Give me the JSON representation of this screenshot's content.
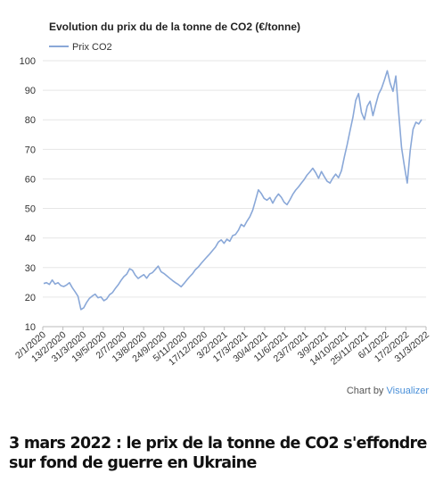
{
  "chart_data": {
    "type": "line",
    "title": "Evolution du prix du de la tonne de CO2 (€/tonne)",
    "xlabel": "",
    "ylabel": "",
    "ylim": [
      10,
      100
    ],
    "yticks": [
      10,
      20,
      30,
      40,
      50,
      60,
      70,
      80,
      90,
      100
    ],
    "xtick_labels": [
      "2/1/2020",
      "13/2/2020",
      "31/3/2020",
      "19/5/2020",
      "2/7/2020",
      "13/8/2020",
      "24/9/2020",
      "5/11/2020",
      "17/12/2020",
      "3/2/2021",
      "17/3/2021",
      "30/4/2021",
      "11/6/2021",
      "23/7/2021",
      "3/9/2021",
      "14/10/2021",
      "25/11/2021",
      "6/1/2022",
      "17/2/2022",
      "31/3/2022"
    ],
    "grid": true,
    "legend_position": "top-left",
    "line_color": "#8aa8d8",
    "series": [
      {
        "name": "Prix CO2",
        "x_start": "2/1/2020",
        "x_end": "31/3/2022",
        "values": [
          24.6,
          24.9,
          24.3,
          25.8,
          24.4,
          24.9,
          23.9,
          23.6,
          24.1,
          24.9,
          23.2,
          21.8,
          20.3,
          15.8,
          16.4,
          18.2,
          19.6,
          20.4,
          21.0,
          19.8,
          20.1,
          18.8,
          19.4,
          20.8,
          21.5,
          22.9,
          24.1,
          25.6,
          26.9,
          27.8,
          29.6,
          29.1,
          27.4,
          26.3,
          27.0,
          27.6,
          26.4,
          27.8,
          28.3,
          29.4,
          30.5,
          28.6,
          28.0,
          27.2,
          26.4,
          25.6,
          24.9,
          24.3,
          23.5,
          24.6,
          25.8,
          26.9,
          27.9,
          29.3,
          30.2,
          31.4,
          32.5,
          33.6,
          34.6,
          35.8,
          36.9,
          38.6,
          39.4,
          38.2,
          39.6,
          38.9,
          40.8,
          41.2,
          42.6,
          44.6,
          43.9,
          45.7,
          47.2,
          49.4,
          52.8,
          56.3,
          55.1,
          53.4,
          52.8,
          53.7,
          51.8,
          53.6,
          54.9,
          53.8,
          52.1,
          51.3,
          52.9,
          54.8,
          56.2,
          57.3,
          58.6,
          59.8,
          61.3,
          62.4,
          63.6,
          62.1,
          60.2,
          62.5,
          60.8,
          59.2,
          58.6,
          60.3,
          61.6,
          60.4,
          62.8,
          67.4,
          71.6,
          76.3,
          80.8,
          86.6,
          88.9,
          82.5,
          80.1,
          84.6,
          86.3,
          81.4,
          85.2,
          88.7,
          90.6,
          93.4,
          96.6,
          92.4,
          89.6,
          94.8,
          82.3,
          70.6,
          64.3,
          58.6,
          69.6,
          76.8,
          79.2,
          78.6,
          80.1
        ]
      }
    ]
  },
  "credit": {
    "prefix": "Chart by ",
    "brand": "Visualizer"
  },
  "caption": "3 mars 2022 : le prix de la tonne de CO2 s'effondre sur fond de guerre en Ukraine",
  "colors": {
    "line": "#8aa8d8",
    "grid": "#e6e6e6",
    "axis": "#bbbbbb",
    "brand": "#4a90d9"
  }
}
